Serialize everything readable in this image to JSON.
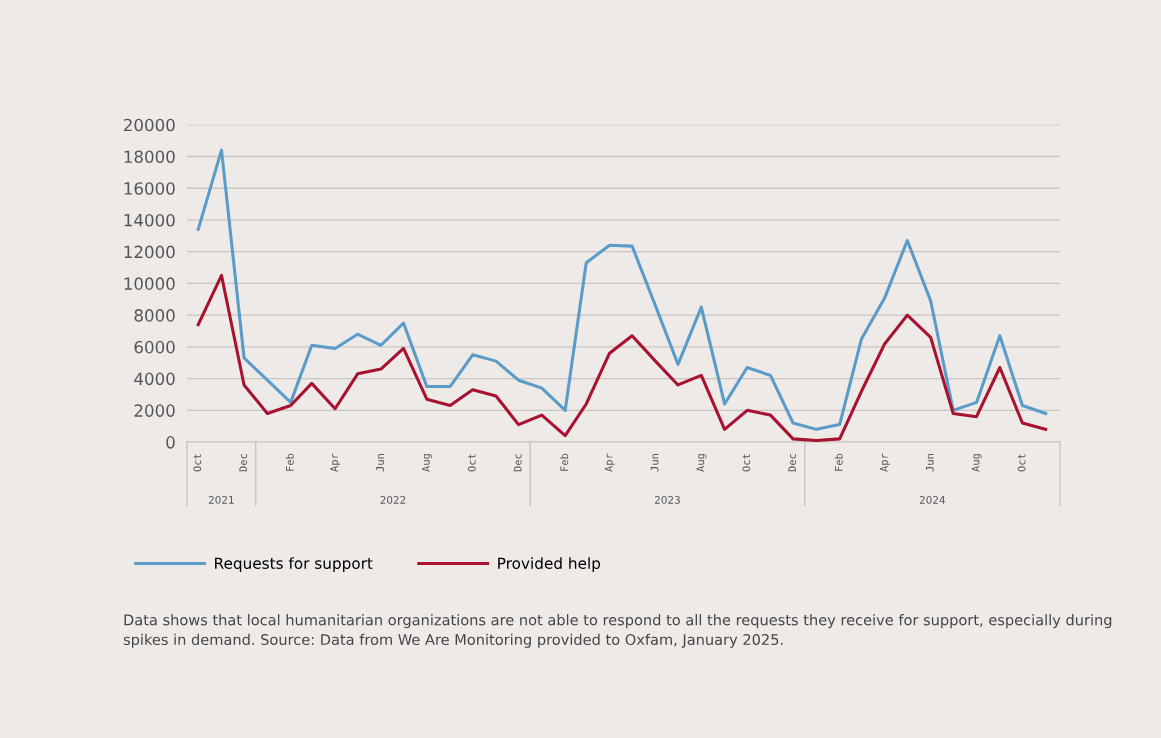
{
  "chart_data": {
    "type": "line",
    "x": [
      "2021-10",
      "2021-11",
      "2021-12",
      "2022-01",
      "2022-02",
      "2022-03",
      "2022-04",
      "2022-05",
      "2022-06",
      "2022-07",
      "2022-08",
      "2022-09",
      "2022-10",
      "2022-11",
      "2022-12",
      "2023-01",
      "2023-02",
      "2023-03",
      "2023-04",
      "2023-05",
      "2023-06",
      "2023-07",
      "2023-08",
      "2023-09",
      "2023-10",
      "2023-11",
      "2023-12",
      "2024-01",
      "2024-02",
      "2024-03",
      "2024-04",
      "2024-05",
      "2024-06",
      "2024-07",
      "2024-08",
      "2024-09",
      "2024-10",
      "2024-11"
    ],
    "series": [
      {
        "name": "Requests for support",
        "color": "#5b9bc8",
        "values": [
          13400,
          18400,
          5300,
          3900,
          2500,
          6100,
          5900,
          6800,
          6100,
          7500,
          3500,
          3500,
          5500,
          5100,
          3900,
          3400,
          2000,
          11300,
          12400,
          12350,
          8600,
          4900,
          8500,
          2400,
          4700,
          4200,
          1200,
          800,
          1100,
          6500,
          9100,
          12700,
          8900,
          2000,
          2500,
          6700,
          2300,
          1800
        ]
      },
      {
        "name": "Provided help",
        "color": "#a8112f",
        "values": [
          7400,
          10500,
          3600,
          1800,
          2300,
          3700,
          2100,
          4300,
          4600,
          5900,
          2700,
          2300,
          3300,
          2900,
          1100,
          1700,
          400,
          2400,
          5600,
          6700,
          5100,
          3600,
          4200,
          800,
          2000,
          1700,
          200,
          100,
          200,
          3200,
          6200,
          8000,
          6600,
          1800,
          1600,
          4700,
          1200,
          800
        ]
      }
    ],
    "xlim": [
      "2021-09-16",
      "2024-11-20"
    ],
    "xticks": [
      {
        "value": "2021-10",
        "label": "Oct"
      },
      {
        "value": "2021-12",
        "label": "Dec"
      },
      {
        "value": "2022-02",
        "label": "Feb"
      },
      {
        "value": "2022-04",
        "label": "Apr"
      },
      {
        "value": "2022-06",
        "label": "Jun"
      },
      {
        "value": "2022-08",
        "label": "Aug"
      },
      {
        "value": "2022-10",
        "label": "Oct"
      },
      {
        "value": "2022-12",
        "label": "Dec"
      },
      {
        "value": "2023-02",
        "label": "Feb"
      },
      {
        "value": "2023-04",
        "label": "Apr"
      },
      {
        "value": "2023-06",
        "label": "Jun"
      },
      {
        "value": "2023-08",
        "label": "Aug"
      },
      {
        "value": "2023-10",
        "label": "Oct"
      },
      {
        "value": "2023-12",
        "label": "Dec"
      },
      {
        "value": "2024-02",
        "label": "Feb"
      },
      {
        "value": "2024-04",
        "label": "Apr"
      },
      {
        "value": "2024-06",
        "label": "Jun"
      },
      {
        "value": "2024-08",
        "label": "Aug"
      },
      {
        "value": "2024-10",
        "label": "Oct"
      }
    ],
    "ylim": [
      0,
      20000
    ],
    "yticks": [
      0,
      2000,
      4000,
      6000,
      8000,
      10000,
      12000,
      14000,
      16000,
      18000,
      20000
    ],
    "grid": "y",
    "legend": "bottom",
    "marker": "none",
    "line_style": "solid",
    "annotations": [
      "2021",
      "2022",
      "2023",
      "2024",
      "Data shows that local humanitarian organizations are not able to respond to all the requests they receive for support, especially during spikes in demand. Source: Data from We Are Monitoring provided to Oxfam, January 2025."
    ]
  }
}
